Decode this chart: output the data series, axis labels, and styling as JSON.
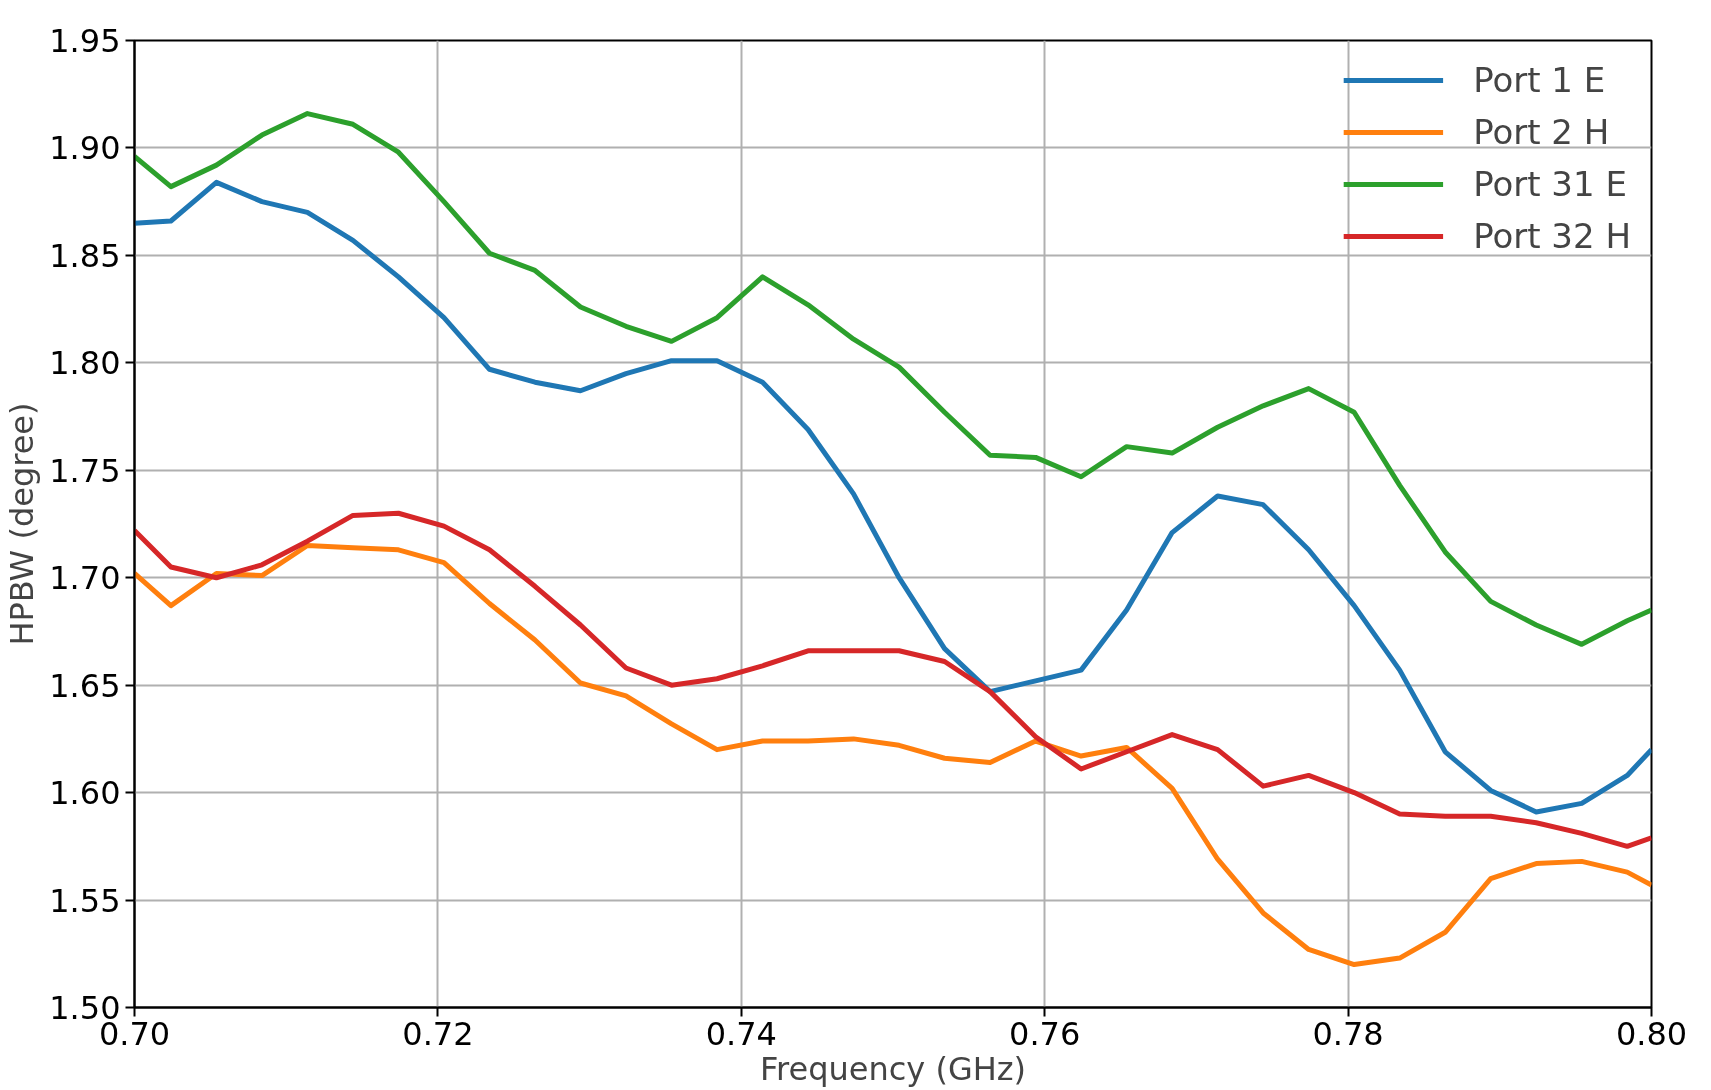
{
  "chart_data": {
    "type": "line",
    "xlabel": "Frequency (GHz)",
    "ylabel": "HPBW (degree)",
    "x": [
      0.7,
      0.7024,
      0.7054,
      0.7084,
      0.7114,
      0.7144,
      0.7174,
      0.7204,
      0.7234,
      0.7264,
      0.7294,
      0.7324,
      0.7354,
      0.7384,
      0.7414,
      0.7444,
      0.7474,
      0.7504,
      0.7534,
      0.7564,
      0.7594,
      0.7624,
      0.7654,
      0.7684,
      0.7714,
      0.7744,
      0.7774,
      0.7804,
      0.7834,
      0.7864,
      0.7894,
      0.7924,
      0.7954,
      0.7984,
      0.8
    ],
    "series": [
      {
        "name": "Port 1 E",
        "color": "#1f77b4",
        "values": [
          1.865,
          1.866,
          1.884,
          1.875,
          1.87,
          1.857,
          1.84,
          1.821,
          1.797,
          1.791,
          1.787,
          1.795,
          1.801,
          1.801,
          1.791,
          1.769,
          1.739,
          1.7,
          1.667,
          1.647,
          1.652,
          1.657,
          1.685,
          1.721,
          1.738,
          1.734,
          1.713,
          1.687,
          1.657,
          1.619,
          1.601,
          1.591,
          1.595,
          1.608,
          1.62
        ]
      },
      {
        "name": "Port 2 H",
        "color": "#ff7f0e",
        "values": [
          1.702,
          1.687,
          1.702,
          1.701,
          1.715,
          1.714,
          1.713,
          1.707,
          1.688,
          1.671,
          1.651,
          1.645,
          1.632,
          1.62,
          1.624,
          1.624,
          1.625,
          1.622,
          1.616,
          1.614,
          1.624,
          1.617,
          1.621,
          1.602,
          1.569,
          1.544,
          1.527,
          1.52,
          1.523,
          1.535,
          1.56,
          1.567,
          1.568,
          1.563,
          1.557
        ]
      },
      {
        "name": "Port 31 E",
        "color": "#2ca02c",
        "values": [
          1.896,
          1.882,
          1.892,
          1.906,
          1.916,
          1.911,
          1.898,
          1.875,
          1.851,
          1.843,
          1.826,
          1.817,
          1.81,
          1.821,
          1.84,
          1.827,
          1.811,
          1.798,
          1.777,
          1.757,
          1.756,
          1.747,
          1.761,
          1.758,
          1.77,
          1.78,
          1.788,
          1.777,
          1.743,
          1.712,
          1.689,
          1.678,
          1.669,
          1.68,
          1.685
        ]
      },
      {
        "name": "Port 32 H",
        "color": "#d62728",
        "values": [
          1.722,
          1.705,
          1.7,
          1.706,
          1.717,
          1.729,
          1.73,
          1.724,
          1.713,
          1.696,
          1.678,
          1.658,
          1.65,
          1.653,
          1.659,
          1.666,
          1.666,
          1.666,
          1.661,
          1.647,
          1.626,
          1.611,
          1.619,
          1.627,
          1.62,
          1.603,
          1.608,
          1.6,
          1.59,
          1.589,
          1.589,
          1.586,
          1.581,
          1.575,
          1.579
        ]
      }
    ],
    "xlim": [
      0.7,
      0.8
    ],
    "xticks": [
      {
        "value": 0.7,
        "label": "0.70"
      },
      0.72,
      0.74,
      0.76,
      0.78,
      {
        "value": 0.8,
        "label": "0.80"
      }
    ],
    "ylim": [
      1.5,
      1.95
    ],
    "yticks": [
      {
        "value": 1.5,
        "label": "1.50"
      },
      1.55,
      {
        "value": 1.6,
        "label": "1.60"
      },
      1.65,
      {
        "value": 1.7,
        "label": "1.70"
      },
      1.75,
      {
        "value": 1.8,
        "label": "1.80"
      },
      1.85,
      {
        "value": 1.9,
        "label": "1.90"
      },
      1.95
    ],
    "grid": true,
    "legend": "top right",
    "line_style": "solid"
  }
}
